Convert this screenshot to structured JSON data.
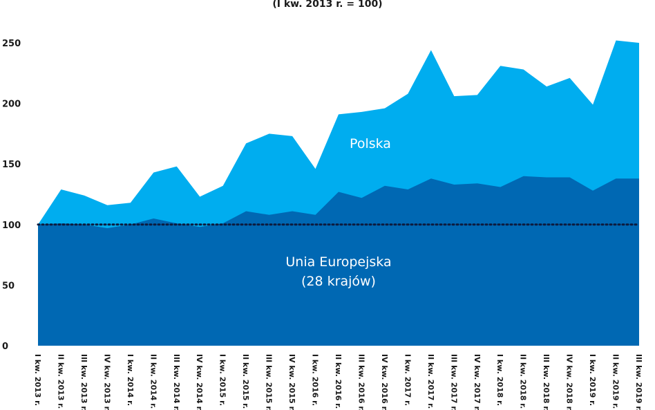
{
  "chart_data": {
    "type": "area",
    "subtitle": "(I kw. 2013 r. = 100)",
    "ylim": [
      0,
      250
    ],
    "yticks": [
      0,
      50,
      100,
      150,
      200,
      250
    ],
    "ytick_labels": [
      "0",
      "50",
      "100",
      "150",
      "200",
      "250"
    ],
    "reference_line": 100,
    "grid": false,
    "categories": [
      "I kw. 2013 r.",
      "II kw. 2013 r.",
      "III kw. 2013 r.",
      "IV kw. 2013 r.",
      "I kw. 2014 r.",
      "II kw. 2014 r.",
      "III kw. 2014 r.",
      "IV kw. 2014 r.",
      "I kw. 2015 r.",
      "II kw. 2015 r.",
      "III kw. 2015 r.",
      "IV kw. 2015 r.",
      "I kw. 2016 r.",
      "II kw. 2016 r.",
      "III kw. 2016 r.",
      "IV kw. 2016 r.",
      "I kw. 2017 r.",
      "II kw. 2017 r.",
      "III kw. 2017 r.",
      "IV kw. 2017 r.",
      "I kw. 2018 r.",
      "II kw. 2018 r.",
      "III kw. 2018 r.",
      "IV kw. 2018 r.",
      "I kw. 2019 r.",
      "II kw. 2019 r.",
      "III kw. 2019 r."
    ],
    "series": [
      {
        "name": "Polska",
        "color": "#00adef",
        "values": [
          100,
          129,
          124,
          116,
          118,
          143,
          148,
          123,
          132,
          167,
          175,
          173,
          146,
          191,
          193,
          196,
          208,
          244,
          206,
          207,
          231,
          228,
          214,
          221,
          199,
          252,
          250
        ]
      },
      {
        "name": "Unia Europejska (28 krajów)",
        "label_lines": [
          "Unia Europejska",
          "(28 krajów)"
        ],
        "color": "#0068b3",
        "values": [
          100,
          101,
          100,
          97,
          100,
          105,
          101,
          98,
          101,
          111,
          108,
          111,
          108,
          127,
          122,
          132,
          129,
          138,
          133,
          134,
          131,
          140,
          139,
          139,
          128,
          138,
          138
        ]
      }
    ]
  }
}
